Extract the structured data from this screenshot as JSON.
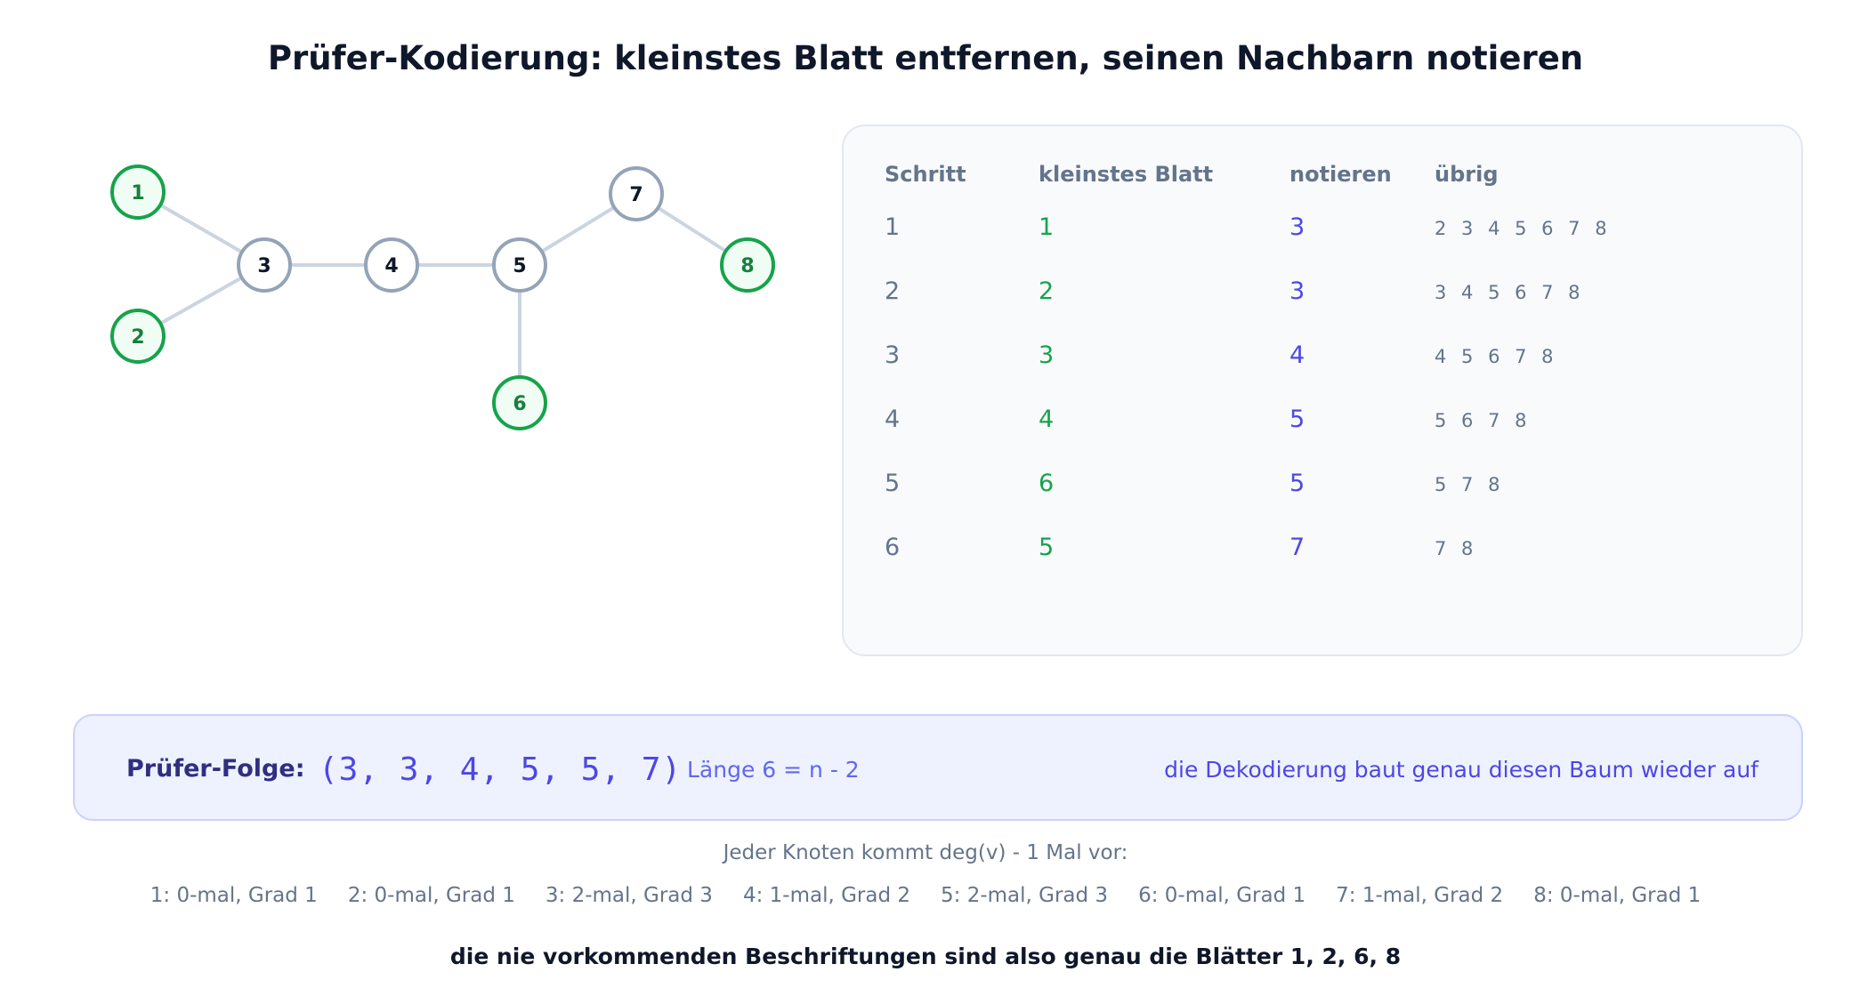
{
  "title": "Prüfer-Kodierung: kleinstes Blatt entfernen, seinen Nachbarn notieren",
  "colors": {
    "leaf": "#16a34a",
    "leaf_fill": "#f0fdf4",
    "inner": "#94a3b8",
    "edge": "#cbd5e1",
    "accent": "#4f46e5"
  },
  "tree": {
    "nodes": [
      {
        "id": "1",
        "leaf": true
      },
      {
        "id": "2",
        "leaf": true
      },
      {
        "id": "3",
        "leaf": false
      },
      {
        "id": "4",
        "leaf": false
      },
      {
        "id": "5",
        "leaf": false
      },
      {
        "id": "6",
        "leaf": true
      },
      {
        "id": "7",
        "leaf": false
      },
      {
        "id": "8",
        "leaf": true
      }
    ],
    "edges": [
      [
        "1",
        "3"
      ],
      [
        "2",
        "3"
      ],
      [
        "3",
        "4"
      ],
      [
        "4",
        "5"
      ],
      [
        "5",
        "7"
      ],
      [
        "7",
        "8"
      ],
      [
        "5",
        "6"
      ]
    ]
  },
  "table": {
    "headers": [
      "Schritt",
      "kleinstes Blatt",
      "notieren",
      "übrig"
    ],
    "rows": [
      {
        "step": "1",
        "leaf": "1",
        "note": "3",
        "rest": "2 3 4 5 6 7 8"
      },
      {
        "step": "2",
        "leaf": "2",
        "note": "3",
        "rest": "3 4 5 6 7 8"
      },
      {
        "step": "3",
        "leaf": "3",
        "note": "4",
        "rest": "4 5 6 7 8"
      },
      {
        "step": "4",
        "leaf": "4",
        "note": "5",
        "rest": "5 6 7 8"
      },
      {
        "step": "5",
        "leaf": "6",
        "note": "5",
        "rest": "5 7 8"
      },
      {
        "step": "6",
        "leaf": "5",
        "note": "7",
        "rest": "7 8"
      }
    ]
  },
  "sequence": {
    "label": "Prüfer-Folge:",
    "value": "(3, 3, 4, 5, 5, 7)",
    "length": "Länge 6 = n - 2",
    "note": "die Dekodierung baut genau diesen Baum wieder auf"
  },
  "degrees": {
    "intro": "Jeder Knoten kommt deg(v) - 1 Mal vor:",
    "items": [
      "1: 0-mal, Grad 1",
      "2: 0-mal, Grad 1",
      "3: 2-mal, Grad 3",
      "4: 1-mal, Grad 2",
      "5: 2-mal, Grad 3",
      "6: 0-mal, Grad 1",
      "7: 1-mal, Grad 2",
      "8: 0-mal, Grad 1"
    ]
  },
  "conclusion": "die nie vorkommenden Beschriftungen sind also genau die Blätter 1, 2, 6, 8"
}
